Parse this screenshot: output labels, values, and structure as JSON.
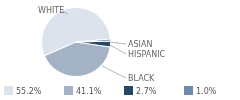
{
  "chart_data": {
    "type": "pie",
    "categories": [
      "WHITE",
      "BLACK",
      "ASIAN",
      "HISPANIC"
    ],
    "values": [
      55.2,
      41.1,
      2.7,
      1.0
    ],
    "value_labels": [
      "55.2%",
      "41.1%",
      "2.7%",
      "1.0%"
    ],
    "colors": [
      "#dde3ec",
      "#a4b2c6",
      "#264766",
      "#6f8aa8"
    ],
    "legend": "bottom"
  }
}
